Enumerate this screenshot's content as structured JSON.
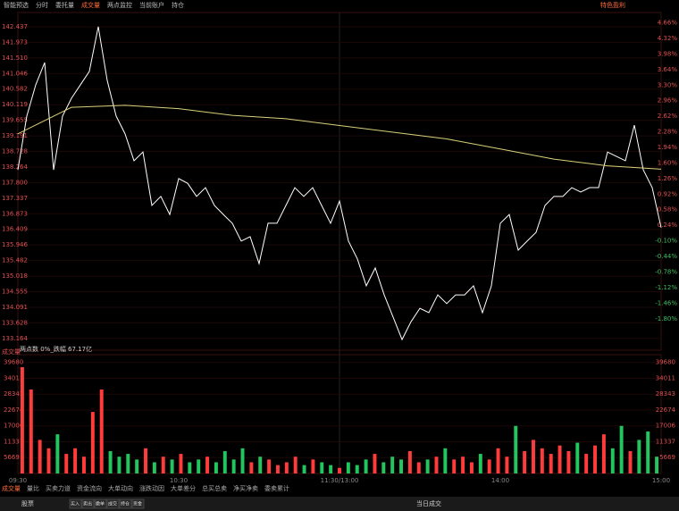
{
  "toolbar": {
    "items": [
      "智能预选",
      "分时",
      "委托量",
      "成交量",
      "两点监控",
      "当前账户",
      "持仓"
    ],
    "right": "特色盈利"
  },
  "chart_data": {
    "type": "line",
    "series": [
      {
        "name": "分时",
        "color": "#ffffff",
        "values": [
          138.18,
          139.78,
          140.71,
          141.37,
          138.18,
          139.78,
          140.31,
          140.71,
          141.11,
          142.44,
          140.84,
          139.78,
          139.25,
          138.45,
          138.71,
          137.12,
          137.39,
          136.85,
          137.92,
          137.78,
          137.39,
          137.65,
          137.12,
          136.85,
          136.59,
          136.06,
          136.19,
          135.39,
          136.59,
          136.59,
          137.12,
          137.65,
          137.39,
          137.65,
          137.12,
          136.59,
          137.25,
          136.06,
          135.53,
          134.73,
          135.26,
          134.46,
          133.8,
          133.13,
          133.66,
          134.06,
          133.93,
          134.46,
          134.2,
          134.46,
          134.46,
          134.73,
          133.93,
          134.73,
          136.59,
          136.85,
          135.79,
          136.06,
          136.32,
          137.12,
          137.39,
          137.39,
          137.65,
          137.52,
          137.65,
          137.65,
          138.71,
          138.58,
          138.45,
          139.51,
          138.18,
          137.65,
          136.46
        ]
      },
      {
        "name": "均价",
        "color": "#d8d27a",
        "values": [
          139.25,
          140.04,
          140.1,
          140.0,
          139.8,
          139.7,
          139.5,
          139.3,
          139.1,
          138.8,
          138.5,
          138.3,
          138.2
        ]
      }
    ],
    "ylim": [
      133.0,
      143.1
    ],
    "yticks": [
      133.164,
      133.628,
      134.091,
      134.555,
      135.018,
      135.482,
      135.946,
      136.409,
      136.873,
      137.337,
      {
        "value": 137.8,
        "label": "137.800"
      },
      138.264,
      138.728,
      139.191,
      139.655,
      140.119,
      140.582,
      141.046,
      {
        "value": 141.51,
        "label": "141.510"
      },
      141.973,
      142.437
    ],
    "y2lim": [
      -2.35,
      5.06
    ],
    "y2ticks": [
      {
        "value": 4.66,
        "label": "4.66%"
      },
      {
        "value": 4.32,
        "label": "4.32%"
      },
      {
        "value": 3.98,
        "label": "3.98%"
      },
      {
        "value": 3.64,
        "label": "3.64%"
      },
      {
        "value": 3.3,
        "label": "3.30%"
      },
      {
        "value": 2.96,
        "label": "2.96%"
      },
      {
        "value": 2.62,
        "label": "2.62%"
      },
      {
        "value": 2.28,
        "label": "2.28%"
      },
      {
        "value": 1.94,
        "label": "1.94%"
      },
      {
        "value": 1.6,
        "label": "1.60%"
      },
      {
        "value": 1.26,
        "label": "1.26%"
      },
      {
        "value": 0.92,
        "label": "0.92%"
      },
      {
        "value": 0.58,
        "label": "0.58%"
      },
      {
        "value": 0.24,
        "label": "0.24%"
      },
      {
        "value": -0.1,
        "label": "-0.10%"
      },
      {
        "value": -0.44,
        "label": "-0.44%"
      },
      {
        "value": -0.78,
        "label": "-0.78%"
      },
      {
        "value": -1.12,
        "label": "-1.12%"
      },
      {
        "value": -1.46,
        "label": "-1.46%"
      },
      {
        "value": -1.8,
        "label": "-1.80%"
      }
    ],
    "x_labels": [
      "09:30",
      "10:30",
      "11:30/13:00",
      "14:00",
      "15:00"
    ],
    "annotation": "两点数 0%_跌幅 67.17亿"
  },
  "volume": {
    "type": "bar",
    "title": "成交量",
    "values": [
      38000,
      30000,
      12000,
      9000,
      14000,
      7000,
      9000,
      6000,
      22000,
      30000,
      8000,
      6000,
      7000,
      5000,
      9000,
      4000,
      6000,
      5000,
      7000,
      4000,
      5000,
      6000,
      4000,
      8000,
      5000,
      9000,
      4000,
      6000,
      5000,
      3000,
      4000,
      6000,
      3000,
      5000,
      4000,
      3000,
      2000,
      4000,
      3000,
      5000,
      7000,
      4000,
      6000,
      5000,
      8000,
      4000,
      5000,
      6000,
      9000,
      5000,
      6000,
      4000,
      7000,
      5000,
      9000,
      6000,
      17000,
      8000,
      12000,
      9000,
      7000,
      10000,
      8000,
      11000,
      7000,
      10000,
      14000,
      9000,
      17000,
      8000,
      12000,
      15000,
      6000
    ],
    "ylim": [
      0,
      41500
    ],
    "yticks": [
      5669,
      11337,
      17006,
      22674,
      28343,
      34011,
      39680
    ],
    "up_color": "#ff3b3b",
    "down_color": "#22c55e"
  },
  "tabs": [
    "成交量",
    "量比",
    "买卖力道",
    "资金流向",
    "大单动向",
    "涨跌动因",
    "大单差分",
    "总买总卖",
    "净买净卖",
    "委卖累计"
  ],
  "order_panel": {
    "label": "股票",
    "buttons": [
      "买入",
      "卖出",
      "撤单",
      "成交",
      "持仓",
      "资金"
    ],
    "title": "当日成交"
  }
}
